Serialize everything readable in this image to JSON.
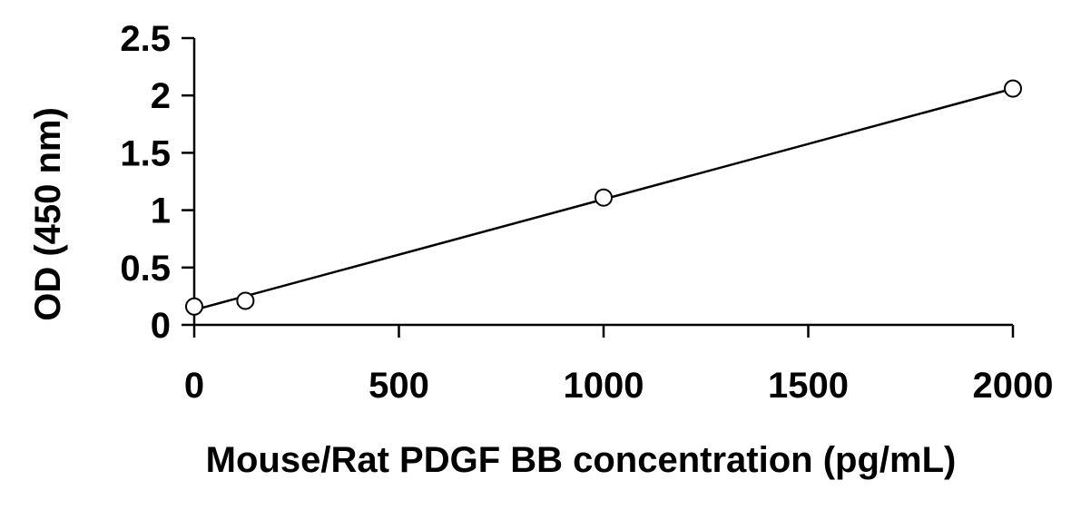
{
  "chart_data": {
    "type": "scatter",
    "title": "",
    "xlabel": "Mouse/Rat PDGF BB concentration (pg/mL)",
    "ylabel": "OD (450 nm)",
    "xlim": [
      0,
      2000
    ],
    "ylim": [
      0,
      2.5
    ],
    "x_ticks": [
      "0",
      "500",
      "1000",
      "1500",
      "2000"
    ],
    "y_ticks": [
      "0",
      "0.5",
      "1",
      "1.5",
      "2",
      "2.5"
    ],
    "x_tick_values": [
      0,
      500,
      1000,
      1500,
      2000
    ],
    "y_tick_values": [
      0,
      0.5,
      1,
      1.5,
      2,
      2.5
    ],
    "grid": false,
    "legend": "none",
    "series": [
      {
        "marker": "open-circle",
        "x": [
          0,
          125,
          1000,
          2000
        ],
        "y": [
          0.16,
          0.21,
          1.11,
          2.06
        ]
      }
    ],
    "trendline": {
      "type": "linear",
      "x": [
        0,
        2000
      ],
      "y": [
        0.13,
        2.06
      ]
    },
    "colors": {
      "line": "#000000",
      "marker_fill": "#ffffff",
      "marker_stroke": "#000000"
    }
  }
}
